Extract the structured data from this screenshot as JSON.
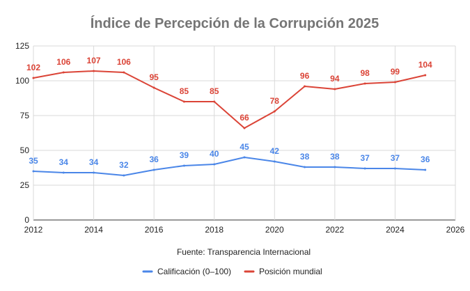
{
  "chart_data": {
    "type": "line",
    "title": "Índice de Percepción de la Corrupción 2025",
    "source_note": "Fuente: Transparencia Internacional",
    "xlabel": "",
    "ylabel": "",
    "x": [
      2012,
      2013,
      2014,
      2015,
      2016,
      2017,
      2018,
      2019,
      2020,
      2021,
      2022,
      2023,
      2024,
      2025
    ],
    "xlim": [
      2012,
      2026
    ],
    "ylim": [
      0,
      125
    ],
    "x_ticks": [
      "2012",
      "2014",
      "2016",
      "2018",
      "2020",
      "2022",
      "2024",
      "2026"
    ],
    "y_ticks": [
      "0",
      "25",
      "50",
      "75",
      "100",
      "125"
    ],
    "grid": true,
    "legend_position": "bottom",
    "series": [
      {
        "name": "Calificación (0–100)",
        "color": "#4a86e8",
        "values": [
          35,
          34,
          34,
          32,
          36,
          39,
          40,
          45,
          42,
          38,
          38,
          37,
          37,
          36
        ],
        "labels": [
          "35",
          "34",
          "34",
          "32",
          "36",
          "39",
          "40",
          "45",
          "42",
          "38",
          "38",
          "37",
          "37",
          "36"
        ]
      },
      {
        "name": "Posición mundial",
        "color": "#db4437",
        "values": [
          102,
          106,
          107,
          106,
          95,
          85,
          85,
          66,
          78,
          96,
          94,
          98,
          99,
          104
        ],
        "labels": [
          "102",
          "106",
          "107",
          "106",
          "95",
          "85",
          "85",
          "66",
          "78",
          "96",
          "94",
          "98",
          "99",
          "104"
        ]
      }
    ]
  }
}
